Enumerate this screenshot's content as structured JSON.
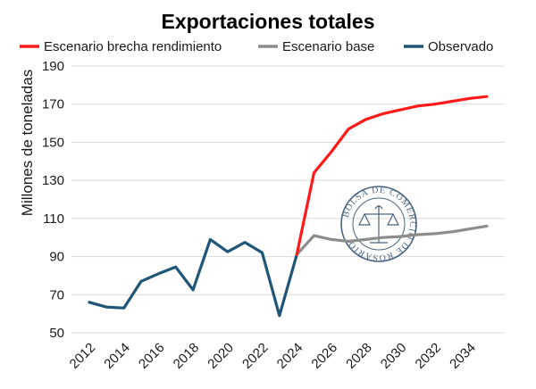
{
  "chart_data": {
    "type": "line",
    "title": "Exportaciones totales",
    "ylabel": "Millones de toneladas",
    "xlabel": "",
    "ylim": [
      50,
      190
    ],
    "yticks": [
      50,
      70,
      90,
      110,
      130,
      150,
      170,
      190
    ],
    "xlim": [
      2012,
      2035
    ],
    "xticks": [
      2012,
      2014,
      2016,
      2018,
      2020,
      2022,
      2024,
      2026,
      2028,
      2030,
      2032,
      2034
    ],
    "grid": "horizontal",
    "legend_position": "top",
    "series": [
      {
        "name": "Escenario brecha rendimiento",
        "color": "#ff1a1a",
        "x": [
          2024,
          2025,
          2026,
          2027,
          2028,
          2029,
          2030,
          2031,
          2032,
          2033,
          2034,
          2035
        ],
        "values": [
          91,
          134,
          145,
          157,
          162,
          165,
          167,
          169,
          170,
          171.5,
          173,
          174
        ]
      },
      {
        "name": "Escenario base",
        "color": "#8c8c8c",
        "x": [
          2024,
          2025,
          2026,
          2027,
          2028,
          2029,
          2030,
          2031,
          2032,
          2033,
          2034,
          2035
        ],
        "values": [
          91,
          101,
          99,
          98,
          99,
          100,
          100.5,
          101.5,
          102,
          103,
          104.5,
          106
        ]
      },
      {
        "name": "Observado",
        "color": "#1f5577",
        "x": [
          2012,
          2013,
          2014,
          2015,
          2016,
          2017,
          2018,
          2019,
          2020,
          2021,
          2022,
          2023,
          2024
        ],
        "values": [
          66,
          63.5,
          63,
          77,
          81,
          84.5,
          72.5,
          99,
          92.5,
          97.5,
          92,
          59,
          91
        ]
      }
    ],
    "watermark": "BOLSA DE COMERCIO DE ROSARIO"
  }
}
